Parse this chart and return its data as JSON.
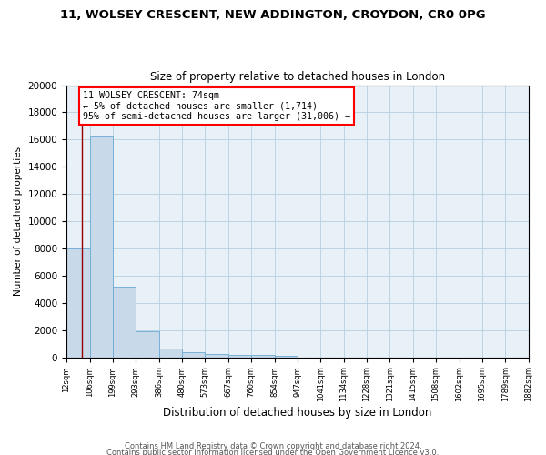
{
  "title1": "11, WOLSEY CRESCENT, NEW ADDINGTON, CROYDON, CR0 0PG",
  "title2": "Size of property relative to detached houses in London",
  "xlabel": "Distribution of detached houses by size in London",
  "ylabel": "Number of detached properties",
  "bar_values": [
    8000,
    16200,
    5200,
    1900,
    650,
    350,
    250,
    200,
    150,
    100,
    0,
    0,
    0,
    0,
    0,
    0,
    0,
    0,
    0,
    0
  ],
  "bin_edges": [
    12,
    106,
    199,
    293,
    386,
    480,
    573,
    667,
    760,
    854,
    947,
    1041,
    1134,
    1228,
    1321,
    1415,
    1508,
    1602,
    1695,
    1789,
    1882
  ],
  "bar_color": "#c8d9ea",
  "bar_edge_color": "#6aaad4",
  "grid_color": "#b8cfe0",
  "background_color": "#e8f0f8",
  "red_line_x": 74,
  "annotation_title": "11 WOLSEY CRESCENT: 74sqm",
  "annotation_line1": "← 5% of detached houses are smaller (1,714)",
  "annotation_line2": "95% of semi-detached houses are larger (31,006) →",
  "footer1": "Contains HM Land Registry data © Crown copyright and database right 2024.",
  "footer2": "Contains public sector information licensed under the Open Government Licence v3.0.",
  "ylim": [
    0,
    20000
  ],
  "yticks": [
    0,
    2000,
    4000,
    6000,
    8000,
    10000,
    12000,
    14000,
    16000,
    18000,
    20000
  ]
}
